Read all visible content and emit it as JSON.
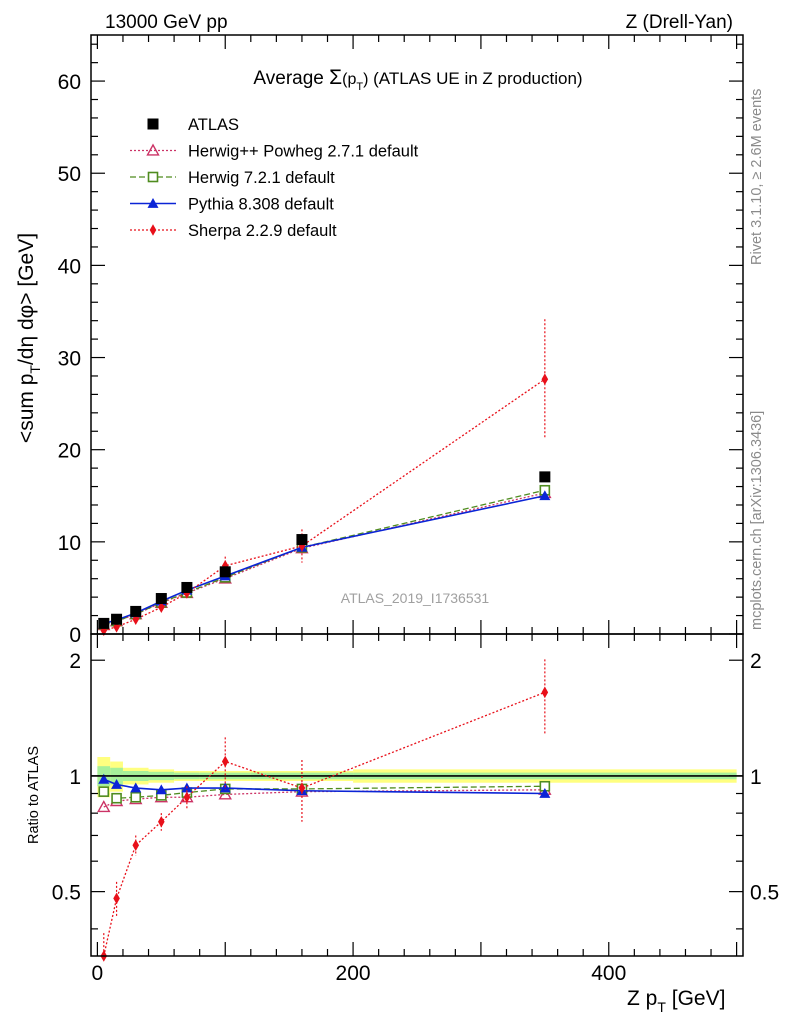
{
  "header": {
    "left": "13000 GeV pp",
    "right": "Z (Drell-Yan)"
  },
  "side_labels": {
    "rivet": "Rivet 3.1.10, ≥ 2.6M events",
    "mcplots": "mcplots.cern.ch [arXiv:1306.3436]"
  },
  "watermark": "ATLAS_2019_I1736531",
  "chart_data": {
    "type": "scatter",
    "title": "Average Σ(p_T) (ATLAS UE in Z production)",
    "xlabel": "Z p_T [GeV]",
    "ylabel": "<sum p_T/dη dφ> [GeV]",
    "ratio_ylabel": "Ratio to ATLAS",
    "xlim": [
      -5,
      505
    ],
    "ylim": [
      0,
      65
    ],
    "ratio_ylim": [
      0.34,
      2.34
    ],
    "ratio_log_scale": true,
    "x_ticks": [
      0,
      200,
      400
    ],
    "y_ticks": [
      0,
      10,
      20,
      30,
      40,
      50,
      60
    ],
    "ratio_ticks": [
      0.5,
      1,
      2
    ],
    "legend_position": "top-left",
    "x": [
      5,
      15,
      30,
      50,
      70,
      100,
      160,
      350
    ],
    "reference": {
      "name": "ATLAS",
      "color": "#000000",
      "values": [
        1.15,
        1.6,
        2.45,
        3.85,
        5.05,
        6.75,
        10.25,
        17.05
      ]
    },
    "band_edges": [
      0,
      10,
      20,
      40,
      60,
      80,
      120,
      200,
      500
    ],
    "band_inner": [
      0.06,
      0.05,
      0.03,
      0.025,
      0.02,
      0.02,
      0.02,
      0.02
    ],
    "band_outer": [
      0.12,
      0.09,
      0.05,
      0.04,
      0.03,
      0.03,
      0.03,
      0.04
    ],
    "series": [
      {
        "name": "Herwig++ Powheg 2.7.1 default",
        "color": "#cc3366",
        "marker": "open-triangle",
        "line": "dotted",
        "values": [
          0.96,
          1.38,
          2.14,
          3.38,
          4.45,
          6.02,
          9.3,
          15.3
        ],
        "ratio": [
          0.83,
          0.86,
          0.87,
          0.88,
          0.88,
          0.895,
          0.91,
          0.92
        ]
      },
      {
        "name": "Herwig 7.2.1 default",
        "color": "#4f8c1f",
        "marker": "open-square",
        "line": "dashed",
        "values": [
          1.05,
          1.4,
          2.16,
          3.42,
          4.5,
          6.15,
          9.4,
          15.6
        ],
        "ratio": [
          0.91,
          0.875,
          0.88,
          0.89,
          0.905,
          0.925,
          0.925,
          0.94
        ]
      },
      {
        "name": "Pythia 8.308 default",
        "color": "#0b24d6",
        "marker": "filled-triangle",
        "line": "solid",
        "values": [
          1.13,
          1.52,
          2.28,
          3.55,
          4.75,
          6.3,
          9.4,
          15.0
        ],
        "ratio": [
          0.98,
          0.95,
          0.93,
          0.92,
          0.93,
          0.93,
          0.915,
          0.9
        ]
      },
      {
        "name": "Sherpa 2.2.9 default",
        "color": "#e8101a",
        "marker": "filled-diamond",
        "line": "dotted",
        "values": [
          0.4,
          0.77,
          1.6,
          2.9,
          4.45,
          7.4,
          9.55,
          27.65
        ],
        "errors": [
          0.1,
          0.1,
          0.2,
          0.3,
          0.3,
          1.0,
          1.8,
          6.5
        ],
        "ratio": [
          0.34,
          0.48,
          0.66,
          0.76,
          0.88,
          1.09,
          0.93,
          1.65
        ],
        "ratio_errors": [
          0.05,
          0.05,
          0.04,
          0.04,
          0.06,
          0.17,
          0.17,
          0.36
        ]
      }
    ]
  }
}
